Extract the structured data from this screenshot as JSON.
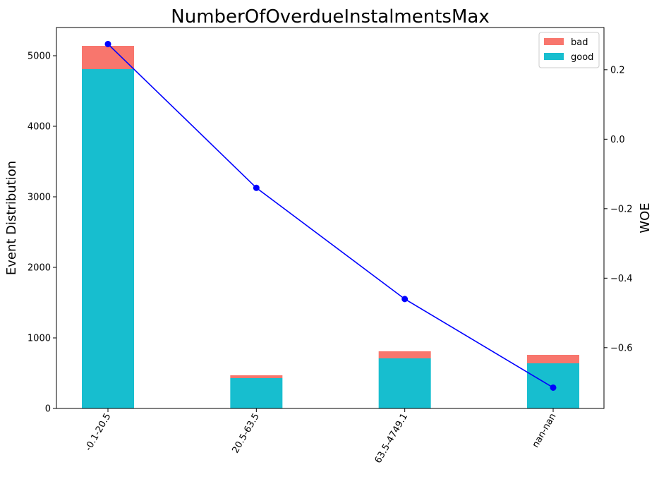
{
  "chart_data": {
    "type": "bar",
    "title": "NumberOfOverdueInstalmentsMax",
    "xlabel": "",
    "ylabel": "Event Distribution",
    "y2label": "WOE",
    "categories": [
      "-0.1-20.5",
      "20.5-63.5",
      "63.5-4749.1",
      "nan-nan"
    ],
    "stacked": true,
    "series": [
      {
        "name": "good",
        "values": [
          4810,
          430,
          710,
          640
        ],
        "color": "#17becf"
      },
      {
        "name": "bad",
        "values": [
          330,
          40,
          100,
          120
        ],
        "color": "#f8766d"
      }
    ],
    "line": {
      "axis": "right",
      "color": "#0000ff",
      "values": [
        0.274,
        -0.14,
        -0.46,
        -0.715
      ]
    },
    "ylim": [
      0,
      5400
    ],
    "yticks": [
      0,
      1000,
      2000,
      3000,
      4000,
      5000
    ],
    "y2lim": [
      -0.775,
      0.3215
    ],
    "y2ticks": [
      0.2,
      0.0,
      -0.2,
      -0.4,
      -0.6
    ],
    "y2tick_labels": [
      "0.2",
      "0.0",
      "−0.2",
      "−0.4",
      "−0.6"
    ],
    "legend": {
      "placement": "top-right",
      "entries": [
        "bad",
        "good"
      ]
    },
    "grid": false
  }
}
